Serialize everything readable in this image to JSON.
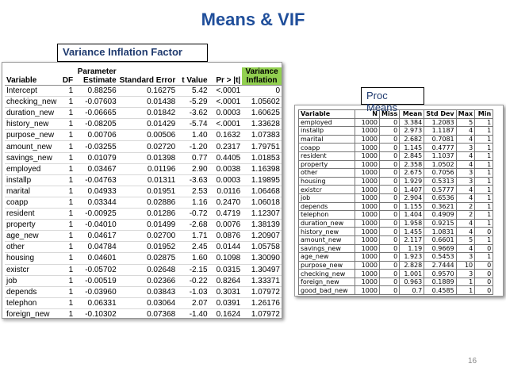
{
  "title": "Means & VIF",
  "vif": {
    "label": "Variance Inflation Factor",
    "header": [
      [
        "Variable"
      ],
      [
        "DF"
      ],
      [
        "Parameter",
        "Estimate"
      ],
      [
        "Standard Error"
      ],
      [
        "t Value"
      ],
      [
        "Pr > |t|"
      ],
      [
        "Variance",
        "Inflation"
      ]
    ],
    "rows": [
      [
        "Intercept",
        "1",
        "0.88256",
        "0.16275",
        "5.42",
        "<.0001",
        "0"
      ],
      [
        "checking_new",
        "1",
        "-0.07603",
        "0.01438",
        "-5.29",
        "<.0001",
        "1.05602"
      ],
      [
        "duration_new",
        "1",
        "-0.06665",
        "0.01842",
        "-3.62",
        "0.0003",
        "1.60625"
      ],
      [
        "history_new",
        "1",
        "-0.08205",
        "0.01429",
        "-5.74",
        "<.0001",
        "1.33628"
      ],
      [
        "purpose_new",
        "1",
        "0.00706",
        "0.00506",
        "1.40",
        "0.1632",
        "1.07383"
      ],
      [
        "amount_new",
        "1",
        "-0.03255",
        "0.02720",
        "-1.20",
        "0.2317",
        "1.79751"
      ],
      [
        "savings_new",
        "1",
        "0.01079",
        "0.01398",
        "0.77",
        "0.4405",
        "1.01853"
      ],
      [
        "employed",
        "1",
        "0.03467",
        "0.01196",
        "2.90",
        "0.0038",
        "1.16398"
      ],
      [
        "installp",
        "1",
        "-0.04763",
        "0.01311",
        "-3.63",
        "0.0003",
        "1.19895"
      ],
      [
        "marital",
        "1",
        "0.04933",
        "0.01951",
        "2.53",
        "0.0116",
        "1.06468"
      ],
      [
        "coapp",
        "1",
        "0.03344",
        "0.02886",
        "1.16",
        "0.2470",
        "1.06018"
      ],
      [
        "resident",
        "1",
        "-0.00925",
        "0.01286",
        "-0.72",
        "0.4719",
        "1.12307"
      ],
      [
        "property",
        "1",
        "-0.04010",
        "0.01499",
        "-2.68",
        "0.0076",
        "1.38139"
      ],
      [
        "age_new",
        "1",
        "0.04617",
        "0.02700",
        "1.71",
        "0.0876",
        "1.20907"
      ],
      [
        "other",
        "1",
        "0.04784",
        "0.01952",
        "2.45",
        "0.0144",
        "1.05758"
      ],
      [
        "housing",
        "1",
        "0.04601",
        "0.02875",
        "1.60",
        "0.1098",
        "1.30090"
      ],
      [
        "existcr",
        "1",
        "-0.05702",
        "0.02648",
        "-2.15",
        "0.0315",
        "1.30497"
      ],
      [
        "job",
        "1",
        "-0.00519",
        "0.02366",
        "-0.22",
        "0.8264",
        "1.33371"
      ],
      [
        "depends",
        "1",
        "-0.03960",
        "0.03843",
        "-1.03",
        "0.3031",
        "1.07972"
      ],
      [
        "telephon",
        "1",
        "0.06331",
        "0.03064",
        "2.07",
        "0.0391",
        "1.26176"
      ],
      [
        "foreign_new",
        "1",
        "-0.10302",
        "0.07368",
        "-1.40",
        "0.1624",
        "1.07972"
      ]
    ]
  },
  "means": {
    "label": "Proc Means",
    "header": [
      [
        "Variable"
      ],
      [
        "N"
      ],
      [
        "Miss"
      ],
      [
        "Mean"
      ],
      [
        "Std Dev"
      ],
      [
        "Max"
      ],
      [
        "Min"
      ]
    ],
    "rows": [
      [
        "employed",
        "1000",
        "0",
        "3.384",
        "1.2083",
        "5",
        "1"
      ],
      [
        "installp",
        "1000",
        "0",
        "2.973",
        "1.1187",
        "4",
        "1"
      ],
      [
        "marital",
        "1000",
        "0",
        "2.682",
        "0.7081",
        "4",
        "1"
      ],
      [
        "coapp",
        "1000",
        "0",
        "1.145",
        "0.4777",
        "3",
        "1"
      ],
      [
        "resident",
        "1000",
        "0",
        "2.845",
        "1.1037",
        "4",
        "1"
      ],
      [
        "property",
        "1000",
        "0",
        "2.358",
        "1.0502",
        "4",
        "1"
      ],
      [
        "other",
        "1000",
        "0",
        "2.675",
        "0.7056",
        "3",
        "1"
      ],
      [
        "housing",
        "1000",
        "0",
        "1.929",
        "0.5313",
        "3",
        "1"
      ],
      [
        "existcr",
        "1000",
        "0",
        "1.407",
        "0.5777",
        "4",
        "1"
      ],
      [
        "job",
        "1000",
        "0",
        "2.904",
        "0.6536",
        "4",
        "1"
      ],
      [
        "depends",
        "1000",
        "0",
        "1.155",
        "0.3621",
        "2",
        "1"
      ],
      [
        "telephon",
        "1000",
        "0",
        "1.404",
        "0.4909",
        "2",
        "1"
      ],
      [
        "duration_new",
        "1000",
        "0",
        "1.958",
        "0.9215",
        "4",
        "1"
      ],
      [
        "history_new",
        "1000",
        "0",
        "1.455",
        "1.0831",
        "4",
        "0"
      ],
      [
        "amount_new",
        "1000",
        "0",
        "2.117",
        "0.6601",
        "5",
        "1"
      ],
      [
        "savings_new",
        "1000",
        "0",
        "1.19",
        "0.9669",
        "4",
        "0"
      ],
      [
        "age_new",
        "1000",
        "0",
        "1.923",
        "0.5453",
        "3",
        "1"
      ],
      [
        "purpose_new",
        "1000",
        "0",
        "2.828",
        "2.7444",
        "10",
        "0"
      ],
      [
        "checking_new",
        "1000",
        "0",
        "1.001",
        "0.9570",
        "3",
        "0"
      ],
      [
        "foreign_new",
        "1000",
        "0",
        "0.963",
        "0.1889",
        "1",
        "0"
      ],
      [
        "good_bad_new",
        "1000",
        "0",
        "0.7",
        "0.4585",
        "1",
        "0"
      ]
    ]
  },
  "page_number": "16"
}
